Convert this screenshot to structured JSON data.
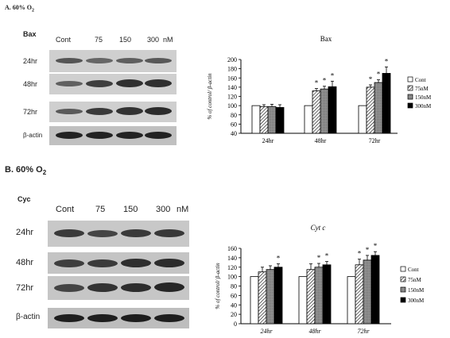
{
  "panel_a": {
    "label": "A. 60% O",
    "label_sub": "2",
    "protein": "Bax",
    "lanes": [
      "Cont",
      "75",
      "150",
      "300"
    ],
    "unit": "nM",
    "rows": [
      "24hr",
      "48hr",
      "72hr",
      "β-actin"
    ]
  },
  "panel_b": {
    "label": "B. 60% O",
    "label_sub": "2",
    "protein": "Cyc",
    "lanes": [
      "Cont",
      "75",
      "150",
      "300"
    ],
    "unit": "nM",
    "rows": [
      "24hr",
      "48hr",
      "72hr",
      "β-actin"
    ]
  },
  "chart_data": [
    {
      "type": "bar",
      "title": "Bax",
      "ylabel": "% of control/ β-actin",
      "categories": [
        "24hr",
        "48hr",
        "72hr"
      ],
      "ylim": [
        40,
        200
      ],
      "yticks": [
        40,
        60,
        80,
        100,
        120,
        140,
        160,
        180,
        200
      ],
      "series": [
        {
          "name": "Cont",
          "values": [
            100,
            100,
            100
          ],
          "errors": [
            0,
            0,
            0
          ],
          "significant": [
            false,
            false,
            false
          ]
        },
        {
          "name": "75nM",
          "values": [
            98,
            132,
            140
          ],
          "errors": [
            4,
            5,
            5
          ],
          "significant": [
            false,
            true,
            true
          ]
        },
        {
          "name": "150nM",
          "values": [
            98,
            136,
            150
          ],
          "errors": [
            5,
            6,
            6
          ],
          "significant": [
            false,
            true,
            true
          ]
        },
        {
          "name": "300nM",
          "values": [
            96,
            141,
            170
          ],
          "errors": [
            6,
            12,
            14
          ],
          "significant": [
            false,
            true,
            true
          ]
        }
      ],
      "significance_marker": "*",
      "legend_position": "right",
      "grid": false
    },
    {
      "type": "bar",
      "title": "Cyt c",
      "ylabel": "% of control/ β-actin",
      "categories": [
        "24hr",
        "48hr",
        "72hr"
      ],
      "ylim": [
        0,
        160
      ],
      "yticks": [
        0,
        20,
        40,
        60,
        80,
        100,
        120,
        140,
        160
      ],
      "series": [
        {
          "name": "Cont",
          "values": [
            100,
            100,
            100
          ],
          "errors": [
            0,
            0,
            0
          ],
          "significant": [
            false,
            false,
            false
          ]
        },
        {
          "name": "75nM",
          "values": [
            110,
            115,
            125
          ],
          "errors": [
            10,
            12,
            12
          ],
          "significant": [
            false,
            false,
            true
          ]
        },
        {
          "name": "150nM",
          "values": [
            115,
            120,
            135
          ],
          "errors": [
            8,
            8,
            10
          ],
          "significant": [
            false,
            true,
            true
          ]
        },
        {
          "name": "300nM",
          "values": [
            120,
            125,
            145
          ],
          "errors": [
            7,
            7,
            8
          ],
          "significant": [
            true,
            true,
            true
          ]
        }
      ],
      "significance_marker": "*",
      "legend_position": "right",
      "grid": false
    }
  ]
}
